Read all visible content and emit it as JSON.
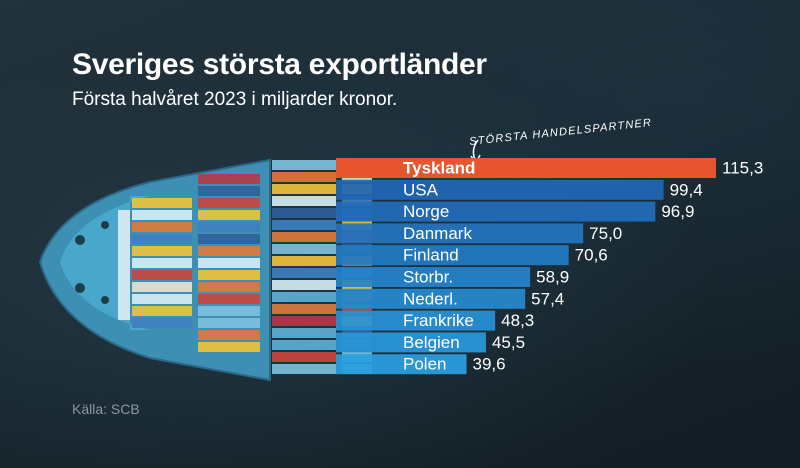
{
  "header": {
    "title": "Sveriges största exportländer",
    "subtitle": "Första halvåret 2023 i miljarder kronor."
  },
  "annotation": "STÖRSTA HANDELSPARTNER",
  "source": "Källa: SCB",
  "colors": {
    "highlight": "#e5552e",
    "bar_blue_dark": "#1f5fae",
    "bar_blue_light": "#2a9fe0"
  },
  "chart_data": {
    "type": "bar",
    "orientation": "horizontal",
    "title": "Sveriges största exportländer",
    "subtitle": "Första halvåret 2023 i miljarder kronor.",
    "categories": [
      "Tyskland",
      "USA",
      "Norge",
      "Danmark",
      "Finland",
      "Storbr.",
      "Nederl.",
      "Frankrike",
      "Belgien",
      "Polen"
    ],
    "values": [
      115.3,
      99.4,
      96.9,
      75.0,
      70.6,
      58.9,
      57.4,
      48.3,
      45.5,
      39.6
    ],
    "value_labels": [
      "115,3",
      "99,4",
      "96,9",
      "75,0",
      "70,6",
      "58,9",
      "57,4",
      "48,3",
      "45,5",
      "39,6"
    ],
    "highlight": "Tyskland",
    "xlabel": "",
    "ylabel": "",
    "grid": false,
    "legend": "none"
  }
}
